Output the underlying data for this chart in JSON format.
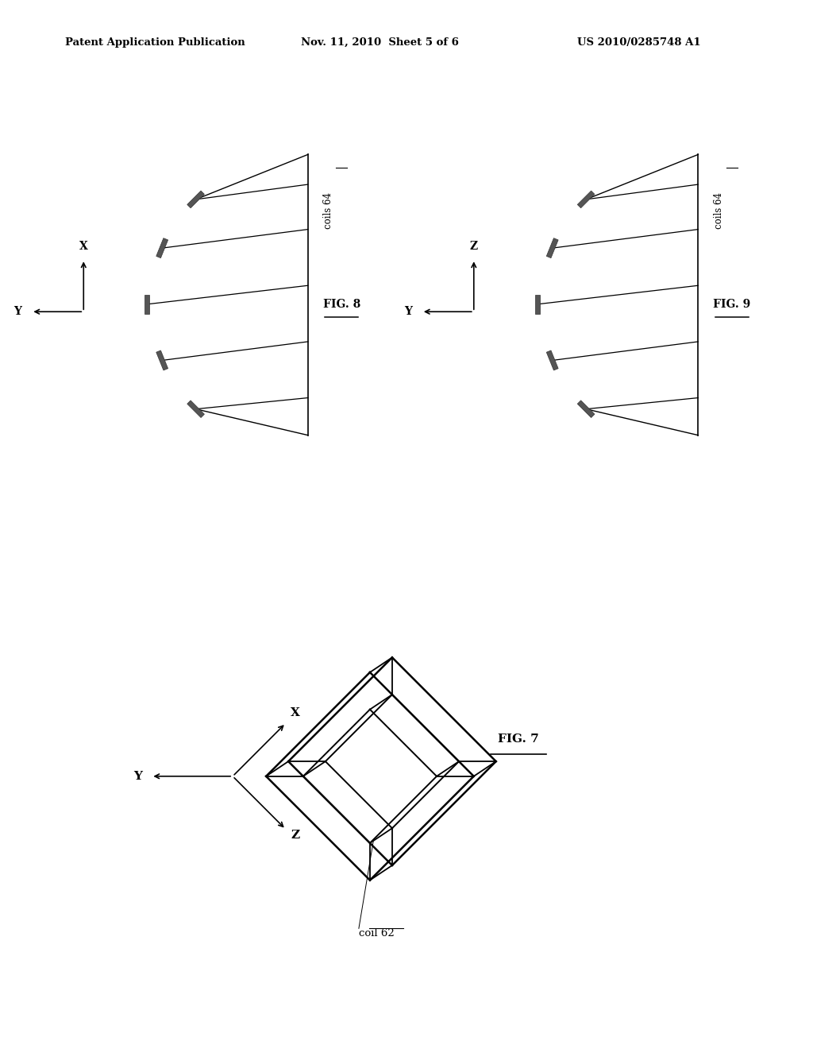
{
  "bg_color": "#ffffff",
  "text_color": "#000000",
  "header_left": "Patent Application Publication",
  "header_center": "Nov. 11, 2010  Sheet 5 of 6",
  "header_right": "US 2010/0285748 A1",
  "fig8_label": "FIG. 8",
  "fig9_label": "FIG. 9",
  "fig7_label": "FIG. 7",
  "coils64_label": "coils 64",
  "coil62_label": "coil 62",
  "coil_color": "#555555",
  "line_color": "#000000"
}
